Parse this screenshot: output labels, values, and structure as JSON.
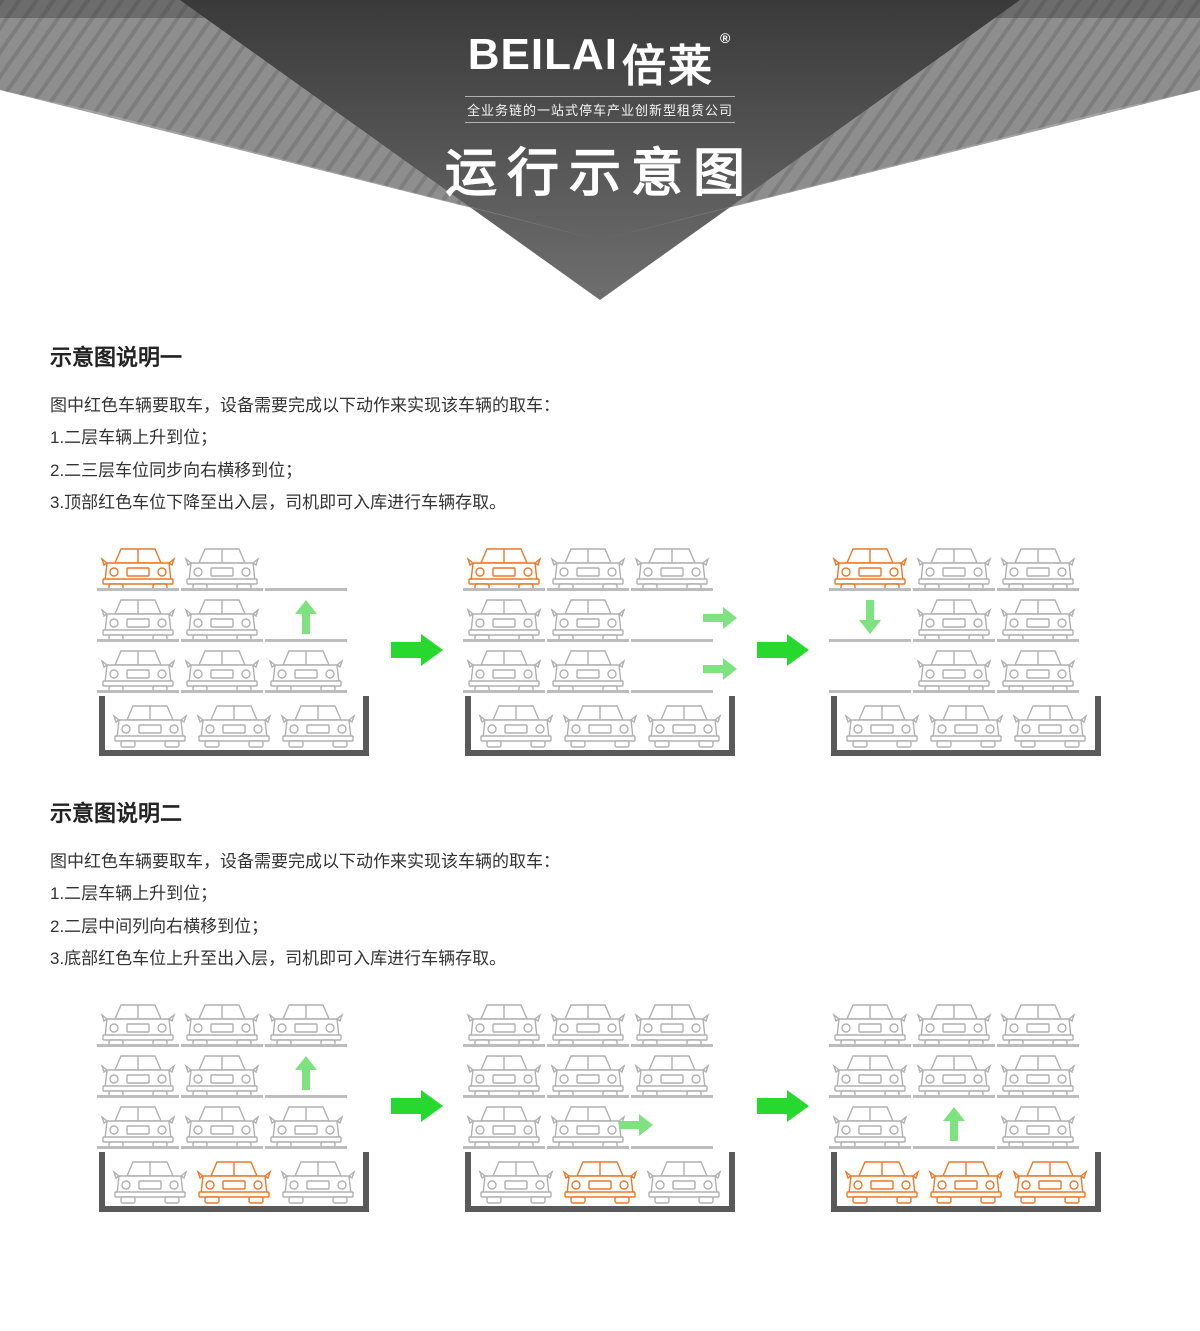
{
  "banner": {
    "brand_en": "BEILAI",
    "brand_cn": "倍莱",
    "reg_mark": "®",
    "subtitle": "全业务链的一站式停车产业创新型租赁公司",
    "title": "运行示意图",
    "bg_dark": "#3b3b3b",
    "bg_mid": "#8e8e8e",
    "bg_light": "#b6b6b6",
    "stripe": "#9a9a9a",
    "text_color": "#ffffff"
  },
  "colors": {
    "car_normal_stroke": "#b0b0b0",
    "car_normal_fill": "#ffffff",
    "car_highlight_stroke": "#e8782a",
    "platform": "#bdbdbd",
    "pit_border": "#5a5a5a",
    "arrow_green": "#27d82f",
    "motion_green": "#7de27f",
    "text": "#333333"
  },
  "layout": {
    "car_w": 78,
    "car_h": 48,
    "gap": 6,
    "step_arrow_w": 60
  },
  "section1": {
    "title": "示意图说明一",
    "intro": "图中红色车辆要取车，设备需要完成以下动作来实现该车辆的取车：",
    "steps": [
      "1.二层车辆上升到位；",
      "2.二三层车位同步向右横移到位；",
      "3.顶部红色车位下降至出入层，司机即可入库进行车辆存取。"
    ],
    "frames": [
      {
        "levels": [
          [
            {
              "car": true,
              "hl": true
            },
            {
              "car": true
            },
            {
              "car": false
            }
          ],
          [
            {
              "car": true
            },
            {
              "car": true
            },
            {
              "car": false
            }
          ],
          [
            {
              "car": true
            },
            {
              "car": true
            },
            {
              "car": true
            }
          ]
        ],
        "pit": [
          {
            "car": true
          },
          {
            "car": true
          },
          {
            "car": true
          }
        ],
        "motions": [
          {
            "type": "up",
            "col": 2,
            "level": 1
          }
        ]
      },
      {
        "levels": [
          [
            {
              "car": true,
              "hl": true
            },
            {
              "car": true
            },
            {
              "car": true
            }
          ],
          [
            {
              "car": true
            },
            {
              "car": true
            },
            {
              "car": false
            }
          ],
          [
            {
              "car": true
            },
            {
              "car": true
            },
            {
              "car": false
            }
          ]
        ],
        "pit": [
          {
            "car": true
          },
          {
            "car": true
          },
          {
            "car": true
          }
        ],
        "motions": [
          {
            "type": "right",
            "col": 2,
            "level": 1
          },
          {
            "type": "right",
            "col": 2,
            "level": 2
          }
        ]
      },
      {
        "levels": [
          [
            {
              "car": true,
              "hl": true
            },
            {
              "car": true
            },
            {
              "car": true
            }
          ],
          [
            {
              "car": false
            },
            {
              "car": true
            },
            {
              "car": true
            }
          ],
          [
            {
              "car": false
            },
            {
              "car": true
            },
            {
              "car": true
            }
          ]
        ],
        "pit": [
          {
            "car": true
          },
          {
            "car": true
          },
          {
            "car": true
          }
        ],
        "motions": [
          {
            "type": "down",
            "col": 0,
            "level": 1
          }
        ]
      }
    ]
  },
  "section2": {
    "title": "示意图说明二",
    "intro": "图中红色车辆要取车，设备需要完成以下动作来实现该车辆的取车：",
    "steps": [
      "1.二层车辆上升到位；",
      "2.二层中间列向右横移到位；",
      "3.底部红色车位上升至出入层，司机即可入库进行车辆存取。"
    ],
    "frames": [
      {
        "levels": [
          [
            {
              "car": true
            },
            {
              "car": true
            },
            {
              "car": true
            }
          ],
          [
            {
              "car": true
            },
            {
              "car": true
            },
            {
              "car": false
            }
          ],
          [
            {
              "car": true
            },
            {
              "car": true
            },
            {
              "car": true
            }
          ]
        ],
        "pit": [
          {
            "car": true
          },
          {
            "car": true,
            "hl": true
          },
          {
            "car": true
          }
        ],
        "motions": [
          {
            "type": "up",
            "col": 2,
            "level": 1
          }
        ]
      },
      {
        "levels": [
          [
            {
              "car": true
            },
            {
              "car": true
            },
            {
              "car": true
            }
          ],
          [
            {
              "car": true
            },
            {
              "car": true
            },
            {
              "car": true
            }
          ],
          [
            {
              "car": true
            },
            {
              "car": true
            },
            {
              "car": false
            }
          ]
        ],
        "pit": [
          {
            "car": true
          },
          {
            "car": true,
            "hl": true
          },
          {
            "car": true
          }
        ],
        "motions": [
          {
            "type": "right",
            "col": 1,
            "level": 2
          }
        ]
      },
      {
        "levels": [
          [
            {
              "car": true
            },
            {
              "car": true
            },
            {
              "car": true
            }
          ],
          [
            {
              "car": true
            },
            {
              "car": true
            },
            {
              "car": true
            }
          ],
          [
            {
              "car": true
            },
            {
              "car": false
            },
            {
              "car": true
            }
          ]
        ],
        "pit": [
          {
            "car": true,
            "hl": true
          },
          {
            "car": true,
            "hl": true
          },
          {
            "car": true,
            "hl": true
          }
        ],
        "motions": [
          {
            "type": "up",
            "col": 1,
            "level": 2
          }
        ]
      }
    ]
  }
}
